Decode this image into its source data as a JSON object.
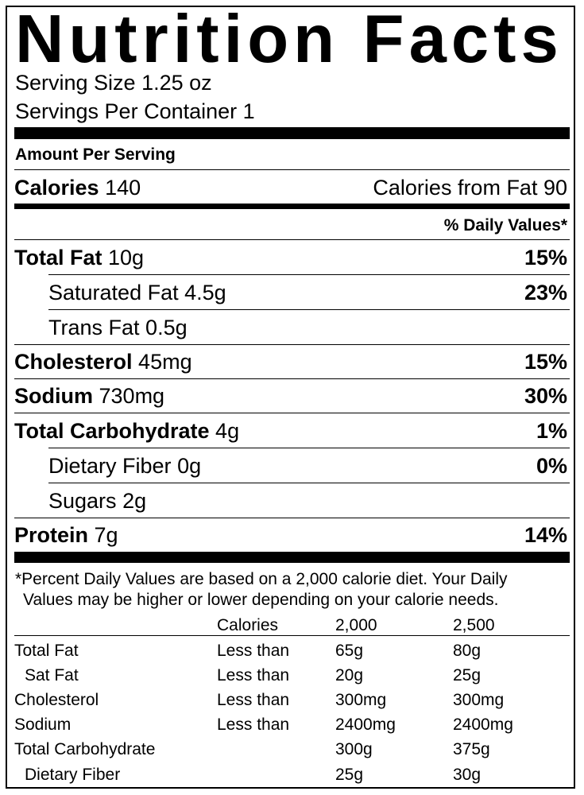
{
  "title": "Nutrition Facts",
  "serving_size": "Serving Size 1.25 oz",
  "servings_per_container": "Servings Per Container 1",
  "amount_per_serving": "Amount Per Serving",
  "calories": {
    "label": "Calories",
    "value": "140",
    "from_fat": "Calories from Fat 90"
  },
  "daily_values_header": "% Daily Values*",
  "nutrients": {
    "total_fat": {
      "label": "Total Fat",
      "amount": "10g",
      "dv": "15%"
    },
    "saturated_fat": {
      "label": "Saturated Fat",
      "amount": "4.5g",
      "dv": "23%"
    },
    "trans_fat": {
      "label": "Trans Fat",
      "amount": "0.5g"
    },
    "cholesterol": {
      "label": "Cholesterol",
      "amount": "45mg",
      "dv": "15%"
    },
    "sodium": {
      "label": "Sodium",
      "amount": "730mg",
      "dv": "30%"
    },
    "total_carbohydrate": {
      "label": "Total Carbohydrate",
      "amount": "4g",
      "dv": "1%"
    },
    "dietary_fiber": {
      "label": "Dietary Fiber",
      "amount": "0g",
      "dv": "0%"
    },
    "sugars": {
      "label": "Sugars",
      "amount": "2g"
    },
    "protein": {
      "label": "Protein",
      "amount": "7g",
      "dv": "14%"
    }
  },
  "footnote": {
    "line1": "*Percent Daily Values are based on a 2,000 calorie diet. Your Daily",
    "line2": "Values may be higher or lower depending on your calorie needs."
  },
  "reference_table": {
    "header": [
      "",
      "Calories",
      "2,000",
      "2,500"
    ],
    "rows": [
      [
        "Total Fat",
        "Less than",
        "65g",
        "80g"
      ],
      [
        "Sat Fat",
        "Less than",
        "20g",
        "25g"
      ],
      [
        "Cholesterol",
        "Less than",
        "300mg",
        "300mg"
      ],
      [
        "Sodium",
        "Less than",
        "2400mg",
        "2400mg"
      ],
      [
        "Total Carbohydrate",
        "",
        "300g",
        "375g"
      ],
      [
        "Dietary Fiber",
        "",
        "25g",
        "30g"
      ]
    ]
  }
}
